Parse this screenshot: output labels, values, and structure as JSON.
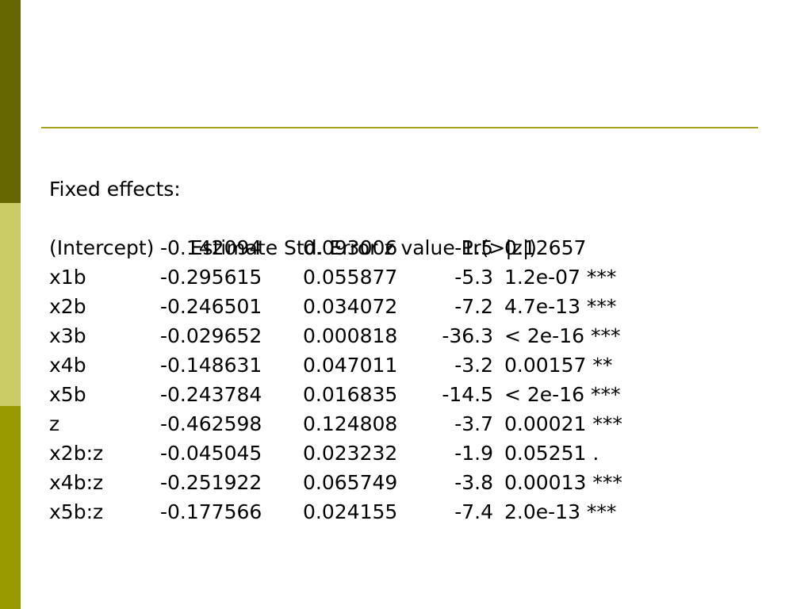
{
  "colors": {
    "sidebar_top": "#666600",
    "sidebar_middle": "#CCCC66",
    "sidebar_bottom": "#999900",
    "rule": "#A8A31E",
    "text": "#000000",
    "background": "#FFFFFF"
  },
  "section_title": "Fixed effects:",
  "header": "Estimate Std. Error z value Pr(>|z|)",
  "rows": [
    {
      "term": "(Intercept)",
      "estimate": "-0.142094",
      "std_error": "0.093006",
      "z_value": "-1.5",
      "p_value": "0.12657"
    },
    {
      "term": "x1b",
      "estimate": "-0.295615",
      "std_error": "0.055877",
      "z_value": "-5.3",
      "p_value": "1.2e-07 ***"
    },
    {
      "term": "x2b",
      "estimate": "-0.246501",
      "std_error": "0.034072",
      "z_value": "-7.2",
      "p_value": "4.7e-13 ***"
    },
    {
      "term": "x3b",
      "estimate": "-0.029652",
      "std_error": "0.000818",
      "z_value": "-36.3",
      "p_value": "< 2e-16 ***"
    },
    {
      "term": "x4b",
      "estimate": "-0.148631",
      "std_error": "0.047011",
      "z_value": "-3.2",
      "p_value": "0.00157 **"
    },
    {
      "term": "x5b",
      "estimate": "-0.243784",
      "std_error": "0.016835",
      "z_value": "-14.5",
      "p_value": "< 2e-16 ***"
    },
    {
      "term": "z",
      "estimate": "-0.462598",
      "std_error": "0.124808",
      "z_value": "-3.7",
      "p_value": "0.00021 ***"
    },
    {
      "term": "x2b:z",
      "estimate": "-0.045045",
      "std_error": "0.023232",
      "z_value": "-1.9",
      "p_value": "0.05251 ."
    },
    {
      "term": "x4b:z",
      "estimate": "-0.251922",
      "std_error": "0.065749",
      "z_value": "-3.8",
      "p_value": "0.00013 ***"
    },
    {
      "term": "x5b:z",
      "estimate": "-0.177566",
      "std_error": "0.024155",
      "z_value": "-7.4",
      "p_value": "2.0e-13 ***"
    }
  ]
}
